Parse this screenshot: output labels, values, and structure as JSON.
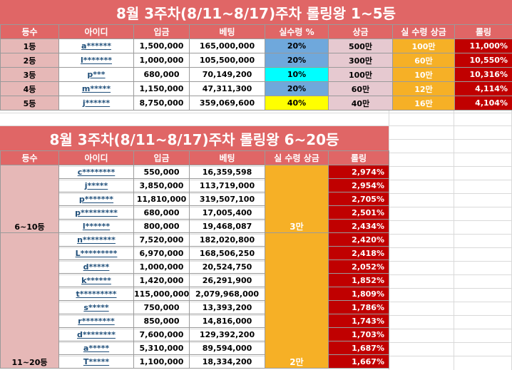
{
  "colors": {
    "header": "#e06666",
    "rank": "#e6b8b7",
    "orange": "#f6b026",
    "red": "#c00000",
    "blue": "#6fa8dc",
    "cyan": "#00ffff",
    "yellow": "#ffff00"
  },
  "top": {
    "title": "8월 3주차(8/11~8/17)주차 롤링왕 1~5등",
    "headers": [
      "등수",
      "아이디",
      "입금",
      "베팅",
      "실수령 %",
      "상금",
      "실 수령 상금",
      "롤링"
    ],
    "rows": [
      {
        "rank": "1등",
        "id": "a******",
        "deposit": "1,500,000",
        "bet": "165,000,000",
        "pct": "20%",
        "prize": "500만",
        "net": "100만",
        "rolling": "11,000%"
      },
      {
        "rank": "2등",
        "id": "l*******",
        "deposit": "1,000,000",
        "bet": "105,500,000",
        "pct": "20%",
        "prize": "300만",
        "net": "60만",
        "rolling": "10,550%"
      },
      {
        "rank": "3등",
        "id": "p***",
        "deposit": "680,000",
        "bet": "70,149,200",
        "pct": "10%",
        "prize": "100만",
        "net": "10만",
        "rolling": "10,316%"
      },
      {
        "rank": "4등",
        "id": "m*****",
        "deposit": "1,150,000",
        "bet": "47,311,300",
        "pct": "20%",
        "prize": "60만",
        "net": "12만",
        "rolling": "4,114%"
      },
      {
        "rank": "5등",
        "id": "j******",
        "deposit": "8,750,000",
        "bet": "359,069,600",
        "pct": "40%",
        "prize": "40만",
        "net": "16만",
        "rolling": "4,104%"
      }
    ]
  },
  "bottom": {
    "title": "8월 3주차(8/11~8/17)주차 롤링왕 6~20등",
    "headers": [
      "등수",
      "아이디",
      "입금",
      "베팅",
      "실 수령 상금",
      "롤링"
    ],
    "group1_label": "6~10등",
    "group1_prize": "3만",
    "group2_label": "11~20등",
    "group2_prize": "2만",
    "rows": [
      {
        "id": "c********",
        "deposit": "550,000",
        "bet": "16,359,598",
        "rolling": "2,974%"
      },
      {
        "id": "j*****",
        "deposit": "3,850,000",
        "bet": "113,719,000",
        "rolling": "2,954%"
      },
      {
        "id": "p*******",
        "deposit": "11,810,000",
        "bet": "319,507,100",
        "rolling": "2,705%"
      },
      {
        "id": "p*********",
        "deposit": "680,000",
        "bet": "17,005,400",
        "rolling": "2,501%"
      },
      {
        "id": "l******",
        "deposit": "800,000",
        "bet": "19,468,087",
        "rolling": "2,434%"
      },
      {
        "id": "n********",
        "deposit": "7,520,000",
        "bet": "182,020,800",
        "rolling": "2,420%"
      },
      {
        "id": "L*********",
        "deposit": "6,970,000",
        "bet": "168,506,250",
        "rolling": "2,418%"
      },
      {
        "id": "d*****",
        "deposit": "1,000,000",
        "bet": "20,524,750",
        "rolling": "2,052%"
      },
      {
        "id": "k******",
        "deposit": "1,420,000",
        "bet": "26,291,900",
        "rolling": "1,852%"
      },
      {
        "id": "t*********",
        "deposit": "115,000,000",
        "bet": "2,079,968,000",
        "rolling": "1,809%"
      },
      {
        "id": "s*****",
        "deposit": "750,000",
        "bet": "13,393,200",
        "rolling": "1,786%"
      },
      {
        "id": "r********",
        "deposit": "850,000",
        "bet": "14,816,000",
        "rolling": "1,743%"
      },
      {
        "id": "d********",
        "deposit": "7,600,000",
        "bet": "129,392,200",
        "rolling": "1,703%"
      },
      {
        "id": "a*****",
        "deposit": "5,310,000",
        "bet": "89,594,000",
        "rolling": "1,687%"
      },
      {
        "id": "T*****",
        "deposit": "1,100,000",
        "bet": "18,334,200",
        "rolling": "1,667%"
      }
    ]
  }
}
